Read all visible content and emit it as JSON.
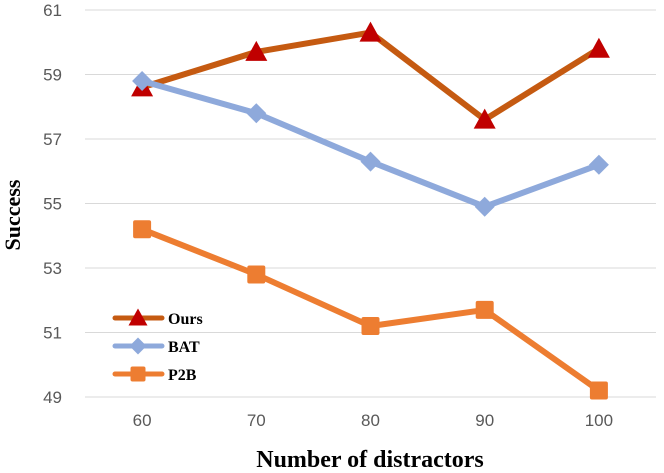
{
  "chart_data": {
    "type": "line",
    "xlabel": "Number of distractors",
    "ylabel": "Success",
    "categories": [
      "60",
      "70",
      "80",
      "90",
      "100"
    ],
    "ylim": [
      49,
      61
    ],
    "yticks": [
      "49",
      "51",
      "53",
      "55",
      "57",
      "59",
      "61"
    ],
    "grid": "horizontal",
    "legend_position": "bottom-left",
    "series": [
      {
        "name": "Ours",
        "values": [
          58.6,
          59.7,
          60.3,
          57.6,
          59.8
        ],
        "color": "#C55A11",
        "marker_color": "#C00000",
        "marker": "triangle"
      },
      {
        "name": "BAT",
        "values": [
          58.8,
          57.8,
          56.3,
          54.9,
          56.2
        ],
        "color": "#8EA9DB",
        "marker_color": "#8EA9DB",
        "marker": "diamond"
      },
      {
        "name": "P2B",
        "values": [
          54.2,
          52.8,
          51.2,
          51.7,
          49.2
        ],
        "color": "#ED7D31",
        "marker_color": "#ED7D31",
        "marker": "square"
      }
    ]
  }
}
